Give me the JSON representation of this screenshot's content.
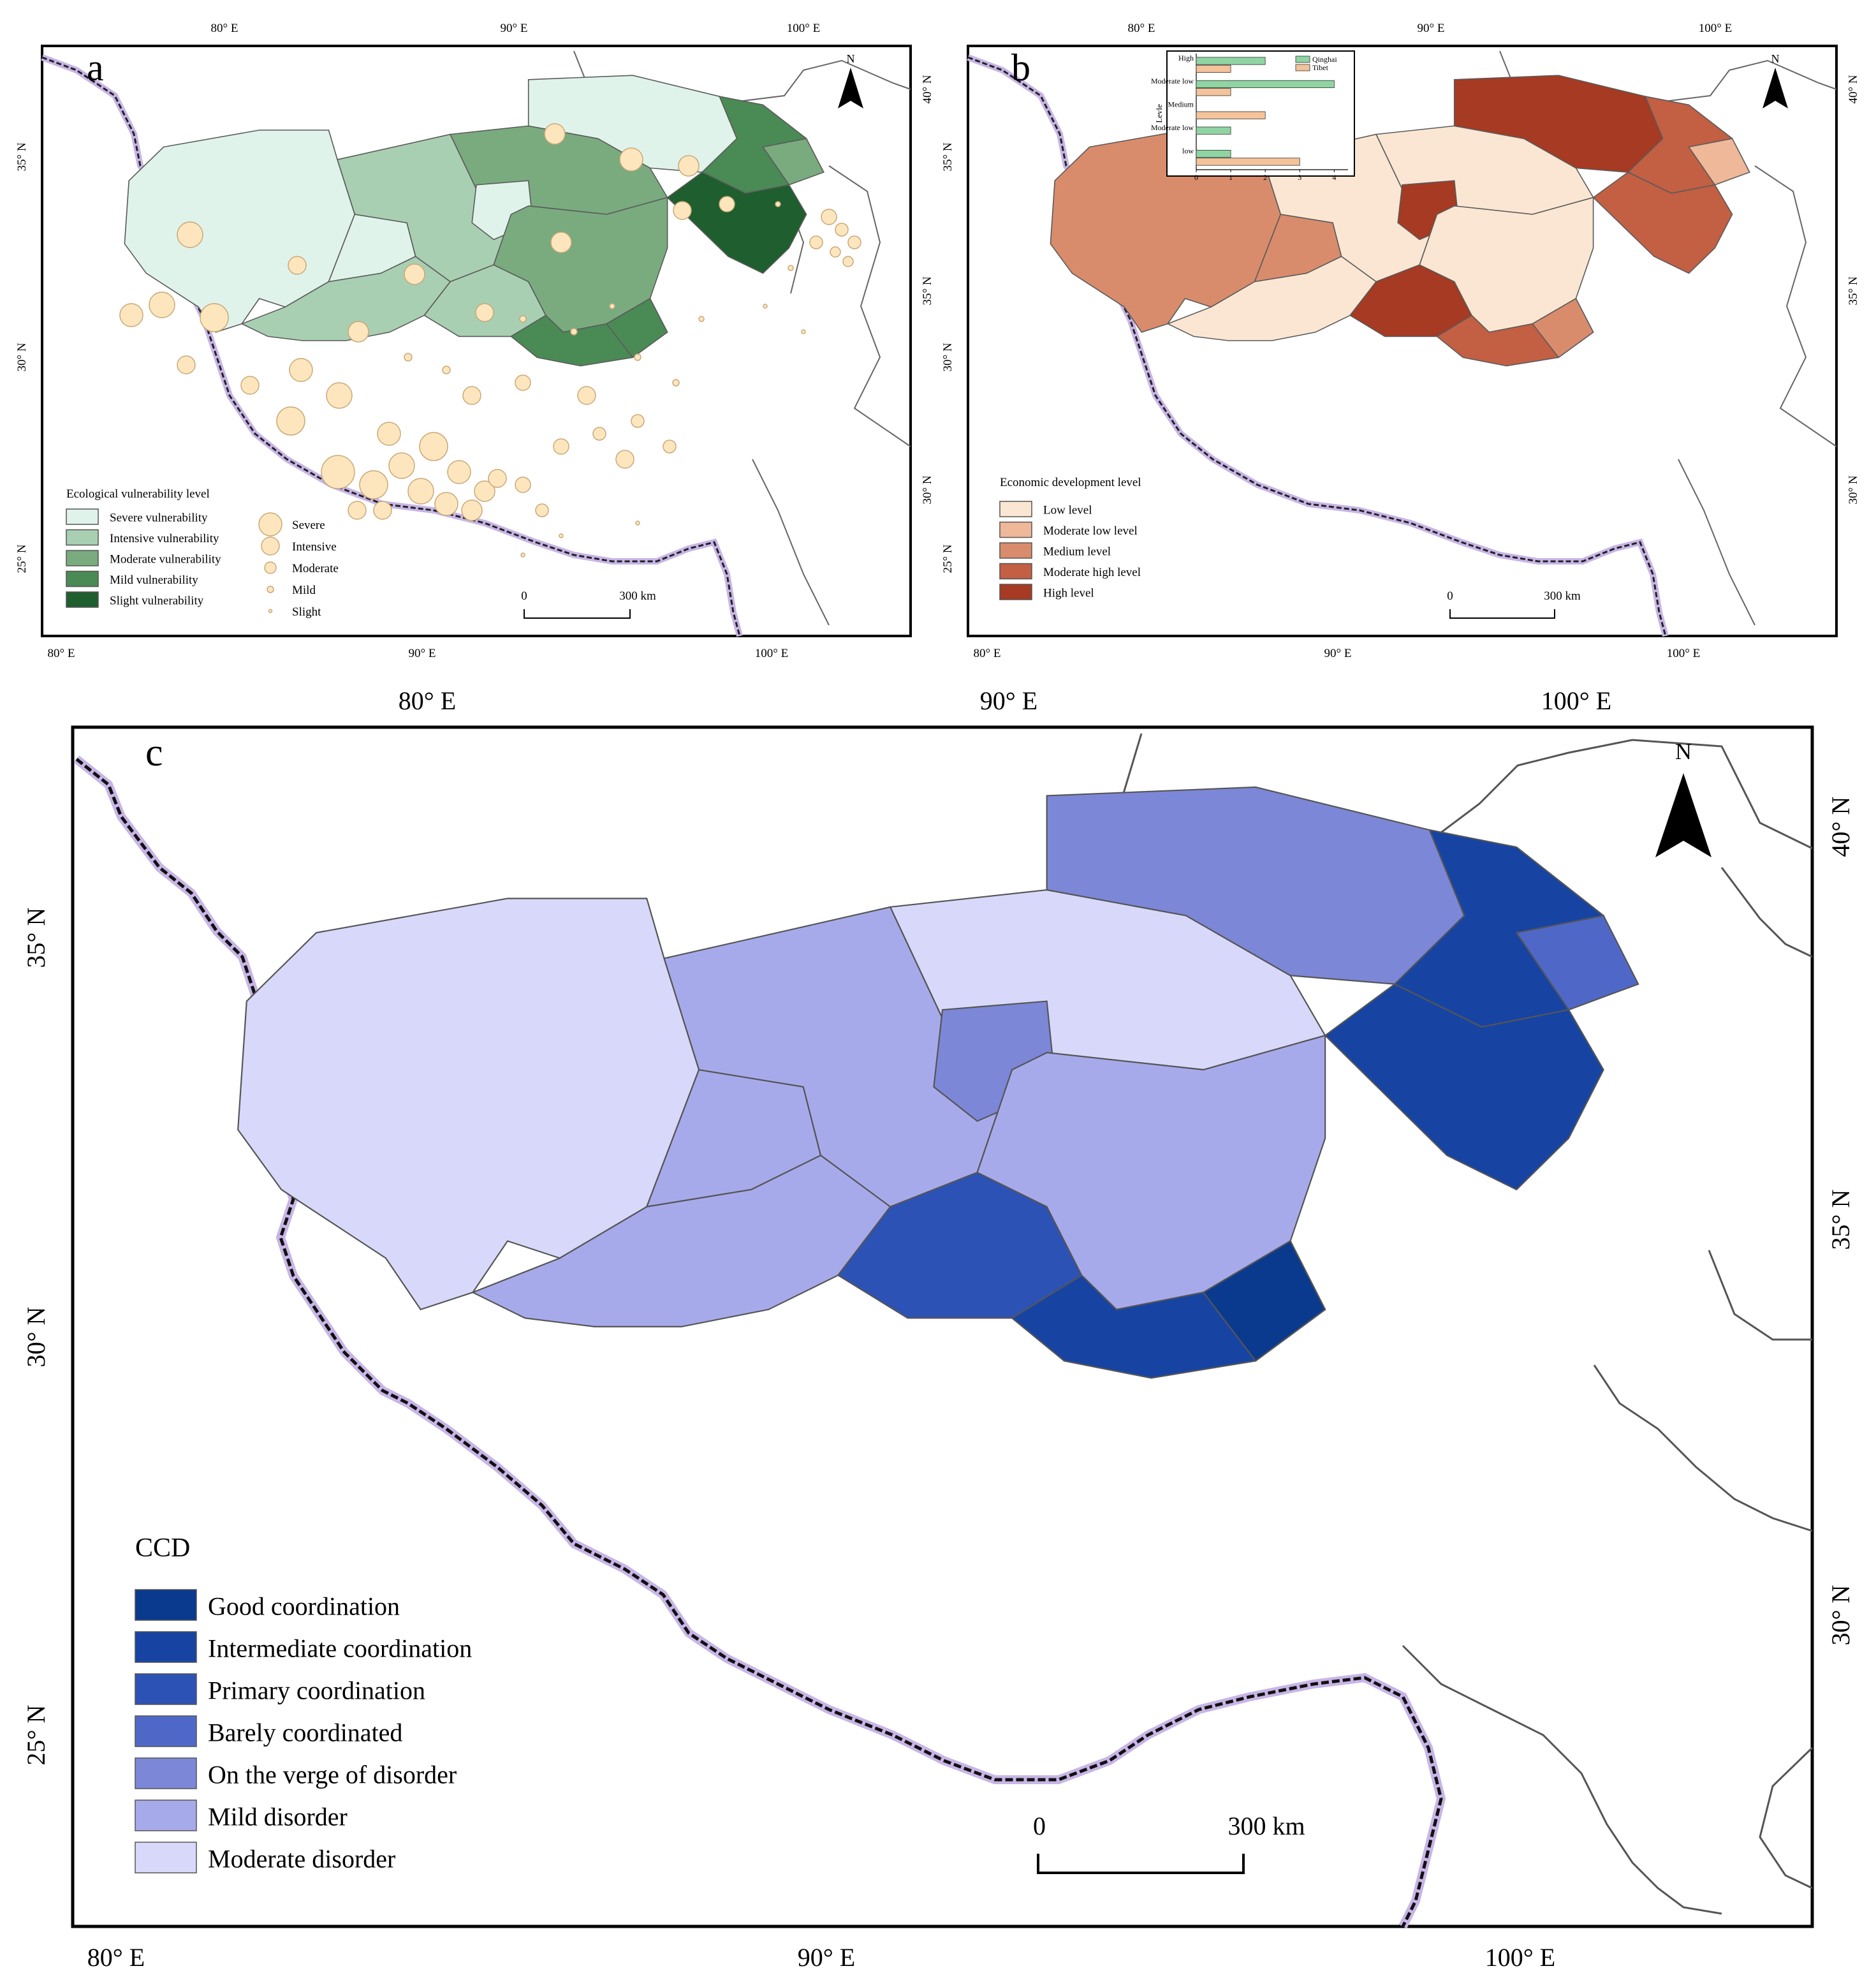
{
  "panel_a": {
    "label": "a",
    "north": "N",
    "ticks_top": [
      "80° E",
      "90° E",
      "100° E"
    ],
    "ticks_bottom": [
      "80° E",
      "90° E",
      "100° E"
    ],
    "ticks_left": [
      "35° N",
      "30° N",
      "25° N"
    ],
    "ticks_right": [
      "40° N",
      "35° N",
      "30° N"
    ],
    "legend_title": "Ecological vulnerability level",
    "classes": [
      {
        "label": "Severe vulnerability",
        "color": "#dff3ea"
      },
      {
        "label": "Intensive vulnerability",
        "color": "#a8cfb1"
      },
      {
        "label": "Moderate vulnerability",
        "color": "#79ab7f"
      },
      {
        "label": "Mild vulnerability",
        "color": "#4a8a55"
      },
      {
        "label": "Slight vulnerability",
        "color": "#1f5e2e"
      }
    ],
    "circle_classes": [
      "Severe",
      "Intensive",
      "Moderate",
      "Mild",
      "Slight"
    ],
    "circle_color": "#fde6bd",
    "scale": [
      "0",
      "300 km"
    ]
  },
  "panel_b": {
    "label": "b",
    "north": "N",
    "ticks_top": [
      "80° E",
      "90° E",
      "100° E"
    ],
    "ticks_bottom": [
      "80° E",
      "90° E",
      "100° E"
    ],
    "ticks_left": [
      "35° N",
      "30° N",
      "25° N"
    ],
    "ticks_right": [
      "40° N",
      "35° N",
      "30° N"
    ],
    "legend_title": "Economic development level",
    "classes": [
      {
        "label": "Low level",
        "color": "#fae6d2"
      },
      {
        "label": "Moderate low level",
        "color": "#efb899"
      },
      {
        "label": "Medium level",
        "color": "#d98c6c"
      },
      {
        "label": "Moderate high level",
        "color": "#c35f43"
      },
      {
        "label": "High level",
        "color": "#a63a22"
      }
    ],
    "scale": [
      "0",
      "300 km"
    ]
  },
  "chart_data": {
    "type": "bar",
    "orientation": "horizontal",
    "ylabel": "Levle",
    "categories": [
      "High",
      "Moderate low",
      "Medium",
      "Moderate low",
      "low"
    ],
    "series": [
      {
        "name": "Qinghai",
        "color": "#8fd4a2",
        "values": [
          2,
          4,
          0,
          1,
          1
        ]
      },
      {
        "name": "Tibet",
        "color": "#f4c39a",
        "values": [
          1,
          1,
          2,
          0,
          3
        ]
      }
    ],
    "xticks": [
      "0",
      "1",
      "2",
      "3",
      "4"
    ],
    "xlim": [
      0,
      4.4
    ]
  },
  "panel_c": {
    "label": "c",
    "north": "N",
    "ticks_top": [
      "80° E",
      "90° E",
      "100° E"
    ],
    "ticks_bottom": [
      "80° E",
      "90° E",
      "100° E"
    ],
    "ticks_left": [
      "35° N",
      "30° N",
      "25° N"
    ],
    "ticks_right": [
      "40° N",
      "35° N",
      "30° N"
    ],
    "legend_title": "CCD",
    "classes": [
      {
        "label": "Good coordination",
        "color": "#0a3a8e"
      },
      {
        "label": "Intermediate coordination",
        "color": "#1744a3"
      },
      {
        "label": "Primary coordination",
        "color": "#2d52b6"
      },
      {
        "label": "Barely coordinated",
        "color": "#4f68c8"
      },
      {
        "label": "On the verge of disorder",
        "color": "#7d87d8"
      },
      {
        "label": "Mild disorder",
        "color": "#a7aaea"
      },
      {
        "label": "Moderate disorder",
        "color": "#d8d8fb"
      }
    ],
    "scale": [
      "0",
      "300 km"
    ]
  }
}
